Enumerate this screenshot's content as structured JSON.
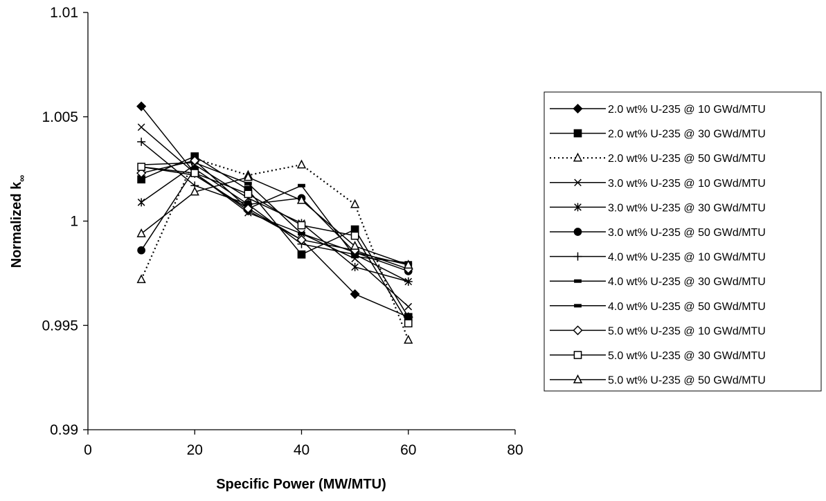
{
  "chart_data": {
    "type": "line",
    "title": "",
    "xlabel": "Specific Power (MW/MTU)",
    "ylabel": "Normalized k",
    "ylabel_subscript": "∞",
    "xlim": [
      0,
      80
    ],
    "ylim": [
      0.99,
      1.01
    ],
    "xticks": [
      "0",
      "20",
      "40",
      "60",
      "80"
    ],
    "yticks": [
      "0.99",
      "0.995",
      "1",
      "1.005",
      "1.01"
    ],
    "grid": false,
    "legend_position": "right",
    "x": [
      10,
      20,
      30,
      40,
      50,
      60
    ],
    "series": [
      {
        "name": "2.0 wt% U-235 @ 10 GWd/MTU",
        "marker": "diamond-filled",
        "dash": "solid",
        "values": [
          1.0055,
          1.0023,
          1.0005,
          0.9991,
          0.9965,
          0.9954
        ]
      },
      {
        "name": "2.0 wt% U-235 @ 30 GWd/MTU",
        "marker": "square-filled",
        "dash": "solid",
        "values": [
          1.002,
          1.0031,
          1.0015,
          0.9984,
          0.9996,
          0.9954
        ]
      },
      {
        "name": "2.0 wt% U-235 @ 50 GWd/MTU",
        "marker": "triangle-open",
        "dash": "dotted",
        "values": [
          0.9972,
          1.003,
          1.0022,
          1.0027,
          1.0008,
          0.9943
        ]
      },
      {
        "name": "3.0 wt% U-235 @ 10 GWd/MTU",
        "marker": "x",
        "dash": "solid",
        "values": [
          1.0045,
          1.0023,
          1.0004,
          0.9994,
          0.9982,
          0.9959
        ]
      },
      {
        "name": "3.0 wt% U-235 @ 30 GWd/MTU",
        "marker": "star",
        "dash": "solid",
        "values": [
          1.0009,
          1.0027,
          1.0011,
          0.9999,
          0.9978,
          0.9971
        ]
      },
      {
        "name": "3.0 wt% U-235 @ 50 GWd/MTU",
        "marker": "circle-filled",
        "dash": "solid",
        "values": [
          0.9986,
          1.0025,
          1.0008,
          1.0011,
          0.9985,
          0.9976
        ]
      },
      {
        "name": "4.0 wt% U-235 @ 10 GWd/MTU",
        "marker": "plus",
        "dash": "solid",
        "values": [
          1.0038,
          1.0017,
          1.0008,
          0.9989,
          0.9984,
          0.9971
        ]
      },
      {
        "name": "4.0 wt% U-235 @ 30 GWd/MTU",
        "marker": "dash",
        "dash": "solid",
        "values": [
          1.0027,
          1.0028,
          1.0018,
          0.9994,
          0.9985,
          0.9979
        ]
      },
      {
        "name": "4.0 wt% U-235 @ 50 GWd/MTU",
        "marker": "dash",
        "dash": "solid",
        "values": [
          1.0026,
          1.0022,
          1.0006,
          1.0017,
          0.9983,
          0.998
        ]
      },
      {
        "name": "5.0 wt% U-235 @ 10 GWd/MTU",
        "marker": "diamond-open",
        "dash": "solid",
        "values": [
          1.0023,
          1.0029,
          1.0006,
          0.9991,
          0.9986,
          0.9977
        ]
      },
      {
        "name": "5.0 wt% U-235 @ 30 GWd/MTU",
        "marker": "square-open",
        "dash": "solid",
        "values": [
          1.0026,
          1.0023,
          1.0013,
          0.9998,
          0.9993,
          0.9951
        ]
      },
      {
        "name": "5.0 wt% U-235 @ 50 GWd/MTU",
        "marker": "triangle-open",
        "dash": "solid",
        "values": [
          0.9994,
          1.0014,
          1.0021,
          1.001,
          0.9988,
          0.9979
        ]
      }
    ]
  }
}
